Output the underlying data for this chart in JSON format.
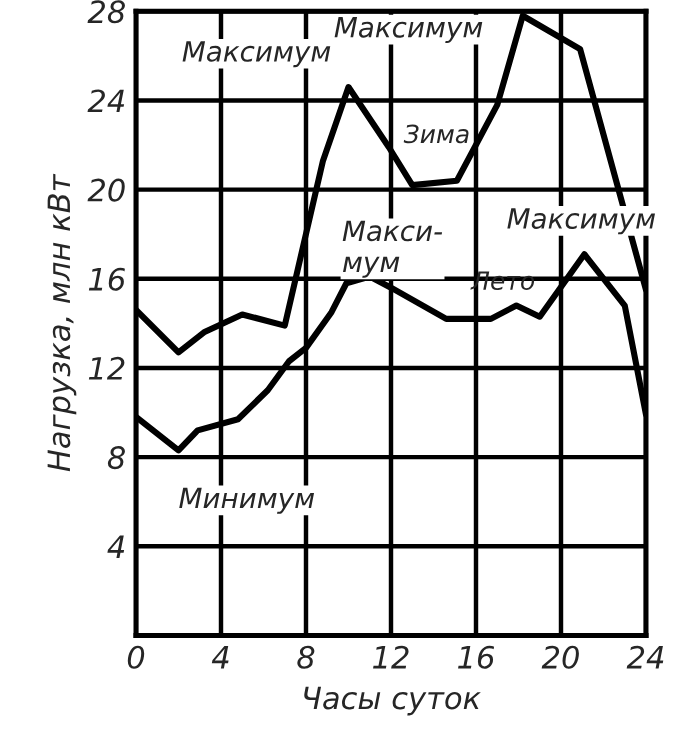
{
  "chart_data": {
    "type": "line",
    "xlabel": "Часы суток",
    "ylabel": "Нагрузка, млн кВт",
    "xlim": [
      0,
      24
    ],
    "xticks": [
      0,
      4,
      8,
      12,
      16,
      20,
      24
    ],
    "ylim": [
      0,
      28
    ],
    "yticks": [
      4,
      8,
      12,
      16,
      20,
      24,
      28
    ],
    "grid": true,
    "marker": "none",
    "line_style": "solid",
    "series": [
      {
        "name": "Зима",
        "color": "#000000",
        "x": [
          0,
          2,
          3.2,
          5,
          7,
          8.8,
          10,
          11.9,
          13,
          15.1,
          17,
          18.2,
          20.9,
          24
        ],
        "values": [
          14.6,
          12.7,
          13.6,
          14.4,
          13.9,
          21.3,
          24.6,
          21.9,
          20.2,
          20.4,
          23.8,
          27.8,
          26.3,
          15.5
        ]
      },
      {
        "name": "Лето",
        "color": "#000000",
        "x": [
          0,
          2,
          2.9,
          4.8,
          6.2,
          7.2,
          8,
          9.2,
          9.9,
          11,
          12,
          14.6,
          16.7,
          17.9,
          19,
          21.1,
          23,
          24
        ],
        "values": [
          9.8,
          8.3,
          9.2,
          9.7,
          11,
          12.3,
          12.9,
          14.5,
          15.8,
          16.1,
          15.6,
          14.2,
          14.2,
          14.8,
          14.3,
          17.1,
          14.8,
          9.9
        ]
      }
    ],
    "annotations": [
      {
        "text": "Максимум",
        "x": 10,
        "y": 24.6
      },
      {
        "text": "Максимум",
        "x": 18.2,
        "y": 27.8
      },
      {
        "text": "Макси-\nмум",
        "x": 11,
        "y": 16.1
      },
      {
        "text": "Максимум",
        "x": 21.1,
        "y": 17.1
      },
      {
        "text": "Минимум",
        "x": 2,
        "y": 8.3
      }
    ]
  }
}
